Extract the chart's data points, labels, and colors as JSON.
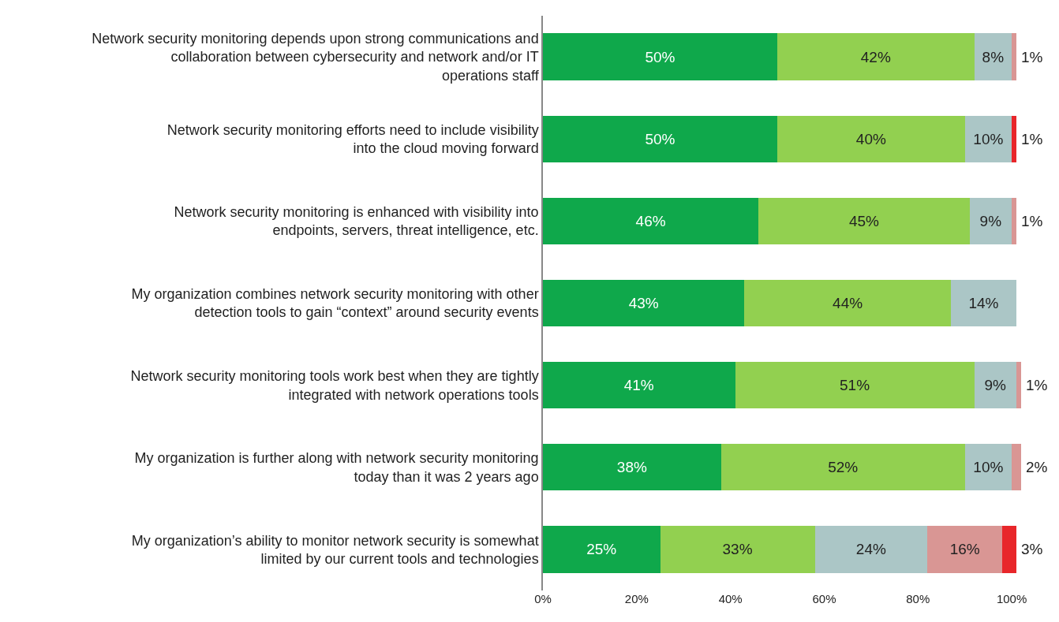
{
  "chart_data": {
    "type": "bar",
    "orientation": "horizontal",
    "stacked": true,
    "categories": [
      "Network security monitoring depends upon strong communications and collaboration between cybersecurity and network and/or IT operations staff",
      "Network security monitoring efforts need to include visibility into the cloud moving forward",
      "Network security monitoring is enhanced with visibility into endpoints, servers, threat intelligence, etc.",
      "My organization combines network security monitoring with other detection tools to gain “context” around security events",
      "Network security monitoring tools work best when they are tightly integrated with network operations tools",
      "My organization is further along with network security monitoring today than it was 2 years ago",
      "My organization’s ability to monitor network security is somewhat limited by our current tools and technologies"
    ],
    "series": [
      {
        "color": "#0fa84b",
        "values": [
          50,
          50,
          46,
          43,
          41,
          38,
          25
        ],
        "value_labels": [
          "50%",
          "50%",
          "46%",
          "43%",
          "41%",
          "38%",
          "25%"
        ]
      },
      {
        "color": "#92d050",
        "values": [
          42,
          40,
          45,
          44,
          51,
          52,
          33
        ],
        "value_labels": [
          "42%",
          "40%",
          "45%",
          "44%",
          "51%",
          "52%",
          "33%"
        ]
      },
      {
        "color": "#abc6c6",
        "values": [
          8,
          10,
          9,
          14,
          9,
          10,
          24
        ],
        "value_labels": [
          "8%",
          "10%",
          "9%",
          "14%",
          "9%",
          "10%",
          "24%"
        ]
      },
      {
        "color": "#d99694",
        "values": [
          1,
          null,
          1,
          null,
          1,
          2,
          16
        ],
        "value_labels": [
          "1%",
          null,
          "1%",
          null,
          "1%",
          "2%",
          "16%"
        ]
      },
      {
        "color": "#e8262a",
        "values": [
          null,
          1,
          null,
          null,
          null,
          null,
          3
        ],
        "value_labels": [
          null,
          "1%",
          null,
          null,
          null,
          null,
          "3%"
        ]
      }
    ],
    "xlim": [
      0,
      102
    ],
    "xticks": [
      {
        "value": 0,
        "label": "0%"
      },
      {
        "value": 20,
        "label": "20%"
      },
      {
        "value": 40,
        "label": "40%"
      },
      {
        "value": 60,
        "label": "60%"
      },
      {
        "value": 80,
        "label": "80%"
      },
      {
        "value": 100,
        "label": "100%"
      }
    ]
  }
}
